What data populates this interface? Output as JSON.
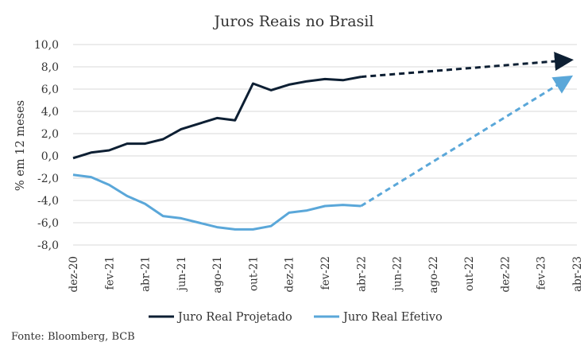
{
  "chart_data": {
    "type": "line",
    "title": "Juros Reais no Brasil",
    "ylabel": "% em 12 meses",
    "xlabel": "",
    "source": "Fonte: Bloomberg, BCB",
    "ylim": [
      -8,
      10
    ],
    "ytick_step": 2,
    "ytick_labels": [
      "10,0",
      "8,0",
      "6,0",
      "4,0",
      "2,0",
      "0,0",
      "-2,0",
      "-4,0",
      "-6,0",
      "-8,0"
    ],
    "grid": "horizontal",
    "legend_position": "bottom",
    "x_categories": [
      "dez-20",
      "jan-21",
      "fev-21",
      "mar-21",
      "abr-21",
      "mai-21",
      "jun-21",
      "jul-21",
      "ago-21",
      "set-21",
      "out-21",
      "nov-21",
      "dez-21",
      "jan-22",
      "fev-22",
      "mar-22",
      "abr-22",
      "mai-22",
      "jun-22",
      "jul-22",
      "ago-22",
      "set-22",
      "out-22",
      "nov-22",
      "dez-22",
      "jan-23",
      "fev-23",
      "mar-23",
      "abr-23"
    ],
    "x_tick_labels": [
      "dez-20",
      "fev-21",
      "abr-21",
      "jun-21",
      "ago-21",
      "out-21",
      "dez-21",
      "fev-22",
      "abr-22",
      "jun-22",
      "ago-22",
      "out-22",
      "dez-22",
      "fev-23",
      "abr-23"
    ],
    "series": [
      {
        "name": "Juro Real Projetado",
        "color": "#0d1f33",
        "values": [
          -0.2,
          0.3,
          0.5,
          1.1,
          1.1,
          1.5,
          2.4,
          2.9,
          3.4,
          3.2,
          6.5,
          5.9,
          6.4,
          6.7,
          6.9,
          6.8,
          7.1
        ],
        "projection": {
          "from": "abr-22",
          "from_value": 7.1,
          "to": "abr-23",
          "to_value": 8.6
        }
      },
      {
        "name": "Juro Real Efetivo",
        "color": "#5aa7d9",
        "values": [
          -1.7,
          -1.9,
          -2.6,
          -3.6,
          -4.3,
          -5.4,
          -5.6,
          -6.0,
          -6.4,
          -6.6,
          -6.6,
          -6.3,
          -5.1,
          -4.9,
          -4.5,
          -4.4,
          -4.5
        ],
        "projection": {
          "from": "abr-22",
          "from_value": -4.5,
          "to": "abr-23",
          "to_value": 7.0
        }
      }
    ]
  }
}
